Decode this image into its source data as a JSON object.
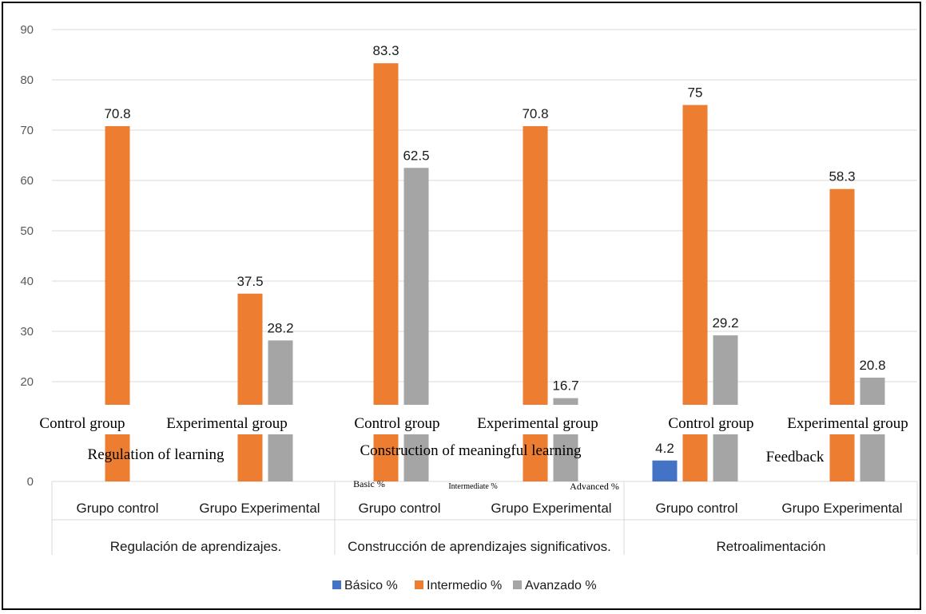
{
  "chart_data": {
    "type": "bar",
    "ylim": [
      0,
      90
    ],
    "yticks": [
      0,
      20,
      30,
      40,
      50,
      60,
      70,
      80,
      90
    ],
    "grid": true,
    "legend_position": "bottom",
    "series": [
      {
        "name": "Básico %",
        "name_en": "Basic %",
        "color": "#4472C4",
        "values": [
          0,
          0,
          0,
          0,
          4.2,
          0
        ]
      },
      {
        "name": "Intermedio %",
        "name_en": "Intermediate %",
        "color": "#ED7D31",
        "values": [
          70.8,
          37.5,
          83.3,
          70.8,
          75,
          58.3
        ]
      },
      {
        "name": "Avanzado %",
        "name_en": "Advanced %",
        "color": "#A5A5A5",
        "values": [
          0,
          28.2,
          62.5,
          16.7,
          29.2,
          20.8
        ]
      }
    ],
    "data_labels": [
      {
        "category": 0,
        "series": 1,
        "text": "70.8"
      },
      {
        "category": 1,
        "series": 1,
        "text": "37.5"
      },
      {
        "category": 1,
        "series": 2,
        "text": "28.2"
      },
      {
        "category": 2,
        "series": 1,
        "text": "83.3"
      },
      {
        "category": 2,
        "series": 2,
        "text": "62.5"
      },
      {
        "category": 3,
        "series": 1,
        "text": "70.8"
      },
      {
        "category": 3,
        "series": 2,
        "text": "16.7"
      },
      {
        "category": 4,
        "series": 0,
        "text": "4.2"
      },
      {
        "category": 4,
        "series": 1,
        "text": "75"
      },
      {
        "category": 4,
        "series": 2,
        "text": "29.2"
      },
      {
        "category": 5,
        "series": 1,
        "text": "58.3"
      },
      {
        "category": 5,
        "series": 2,
        "text": "20.8"
      }
    ],
    "categories": [
      "Grupo control",
      "Grupo Experimental",
      "Grupo control",
      "Grupo Experimental",
      "Grupo control",
      "Grupo Experimental"
    ],
    "categories_en": [
      "Control group",
      "Experimental group",
      "Control group",
      "Experimental group",
      "Control group",
      "Experimental group"
    ],
    "groups": [
      {
        "label": "Regulación de aprendizajes.",
        "label_en": "Regulation of learning"
      },
      {
        "label": "Construcción de aprendizajes significativos.",
        "label_en": "Construction of meaningful learning"
      },
      {
        "label": "Retroalimentación",
        "label_en": "Feedback"
      }
    ]
  }
}
